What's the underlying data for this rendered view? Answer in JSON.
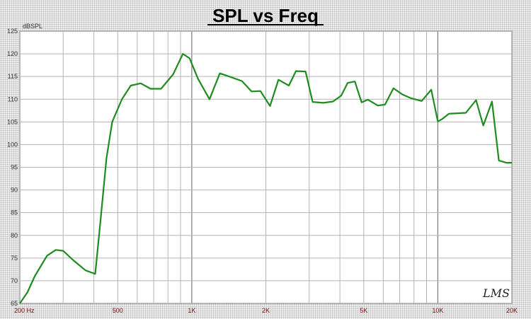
{
  "chart_data": {
    "type": "line",
    "title": "SPL vs Freq",
    "ylabel": "dBSPL",
    "xscale": "log",
    "xlim": [
      200,
      20000
    ],
    "ylim": [
      65,
      125
    ],
    "grid": true,
    "yticks": [
      65,
      70,
      75,
      80,
      85,
      90,
      95,
      100,
      105,
      110,
      115,
      120,
      125
    ],
    "xtick_labels": [
      {
        "value": 200,
        "label": "200  Hz"
      },
      {
        "value": 500,
        "label": "500"
      },
      {
        "value": 1000,
        "label": "1K"
      },
      {
        "value": 2000,
        "label": "2K"
      },
      {
        "value": 5000,
        "label": "5K"
      },
      {
        "value": 10000,
        "label": "10K"
      },
      {
        "value": 20000,
        "label": "20K"
      }
    ],
    "series": [
      {
        "color": "#1e8c1e",
        "x": [
          200,
          215,
          230,
          258,
          280,
          300,
          330,
          370,
          405,
          425,
          450,
          475,
          520,
          565,
          620,
          680,
          750,
          840,
          920,
          980,
          1060,
          1180,
          1300,
          1420,
          1600,
          1750,
          1900,
          2080,
          2250,
          2480,
          2650,
          2900,
          3100,
          3420,
          3750,
          4050,
          4300,
          4600,
          4900,
          5200,
          5700,
          6100,
          6600,
          7200,
          7800,
          8600,
          9400,
          10000,
          10400,
          11100,
          13000,
          14300,
          15300,
          16600,
          17700,
          19000,
          20000
        ],
        "y": [
          65,
          67.5,
          71,
          75.5,
          76.8,
          76.6,
          74.5,
          72.3,
          71.5,
          83,
          97,
          105,
          110,
          113,
          113.5,
          112.3,
          112.3,
          115.5,
          120,
          119,
          114.5,
          110,
          115.7,
          115,
          114,
          111.7,
          111.8,
          108.5,
          114.3,
          113,
          116.2,
          116.1,
          109.4,
          109.2,
          109.5,
          110.8,
          113.6,
          113.9,
          109.3,
          109.9,
          108.6,
          108.8,
          112.4,
          111,
          110.2,
          109.6,
          112.1,
          105.1,
          105.6,
          106.8,
          107,
          109.8,
          104.2,
          109.5,
          96.5,
          96,
          96
        ]
      }
    ]
  },
  "logo_text": "LMS"
}
